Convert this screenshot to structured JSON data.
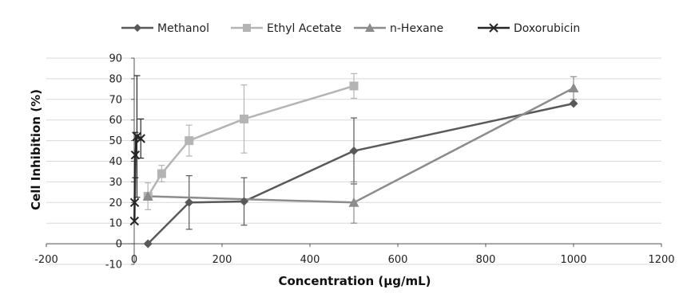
{
  "chart_data": {
    "type": "line",
    "xlabel": "Concentration (µg/mL)",
    "ylabel": "Cell Inhibition (%)",
    "xlim": [
      -200,
      1200
    ],
    "ylim": [
      -10,
      90
    ],
    "xticks": [
      -200,
      0,
      200,
      400,
      600,
      800,
      1000,
      1200
    ],
    "yticks": [
      -10,
      0,
      10,
      20,
      30,
      40,
      50,
      60,
      70,
      80,
      90
    ],
    "grid": "horizontal",
    "legend_position": "top",
    "series": [
      {
        "name": "Methanol",
        "color": "#595959",
        "marker": "diamond",
        "points": [
          {
            "x": 31.25,
            "y": 0,
            "err": 0
          },
          {
            "x": 125,
            "y": 20,
            "err": 13
          },
          {
            "x": 250,
            "y": 20.5,
            "err": 11.5
          },
          {
            "x": 500,
            "y": 45,
            "err": 16
          },
          {
            "x": 1000,
            "y": 68,
            "err": 0
          }
        ]
      },
      {
        "name": "Ethyl Acetate",
        "color": "#b4b4b4",
        "marker": "square",
        "points": [
          {
            "x": 31.25,
            "y": 23,
            "err": 6.5
          },
          {
            "x": 62.5,
            "y": 34,
            "err": 4
          },
          {
            "x": 125,
            "y": 50,
            "err": 7.5
          },
          {
            "x": 250,
            "y": 60.5,
            "err": 16.5
          },
          {
            "x": 500,
            "y": 76.5,
            "err": 6
          }
        ]
      },
      {
        "name": "n-Hexane",
        "color": "#8c8c8c",
        "marker": "triangle",
        "points": [
          {
            "x": 31.25,
            "y": 23,
            "err": 0
          },
          {
            "x": 500,
            "y": 20,
            "err": 10
          },
          {
            "x": 1000,
            "y": 75.5,
            "err": 5.5
          }
        ]
      },
      {
        "name": "Doxorubicin",
        "color": "#262626",
        "marker": "x",
        "points": [
          {
            "x": 0.5,
            "y": 11,
            "err": 0
          },
          {
            "x": 1,
            "y": 20,
            "err": 0
          },
          {
            "x": 2.5,
            "y": 43,
            "err": 11
          },
          {
            "x": 6.25,
            "y": 52,
            "err": 29.5
          },
          {
            "x": 15,
            "y": 51,
            "err": 9.5
          }
        ]
      }
    ]
  }
}
